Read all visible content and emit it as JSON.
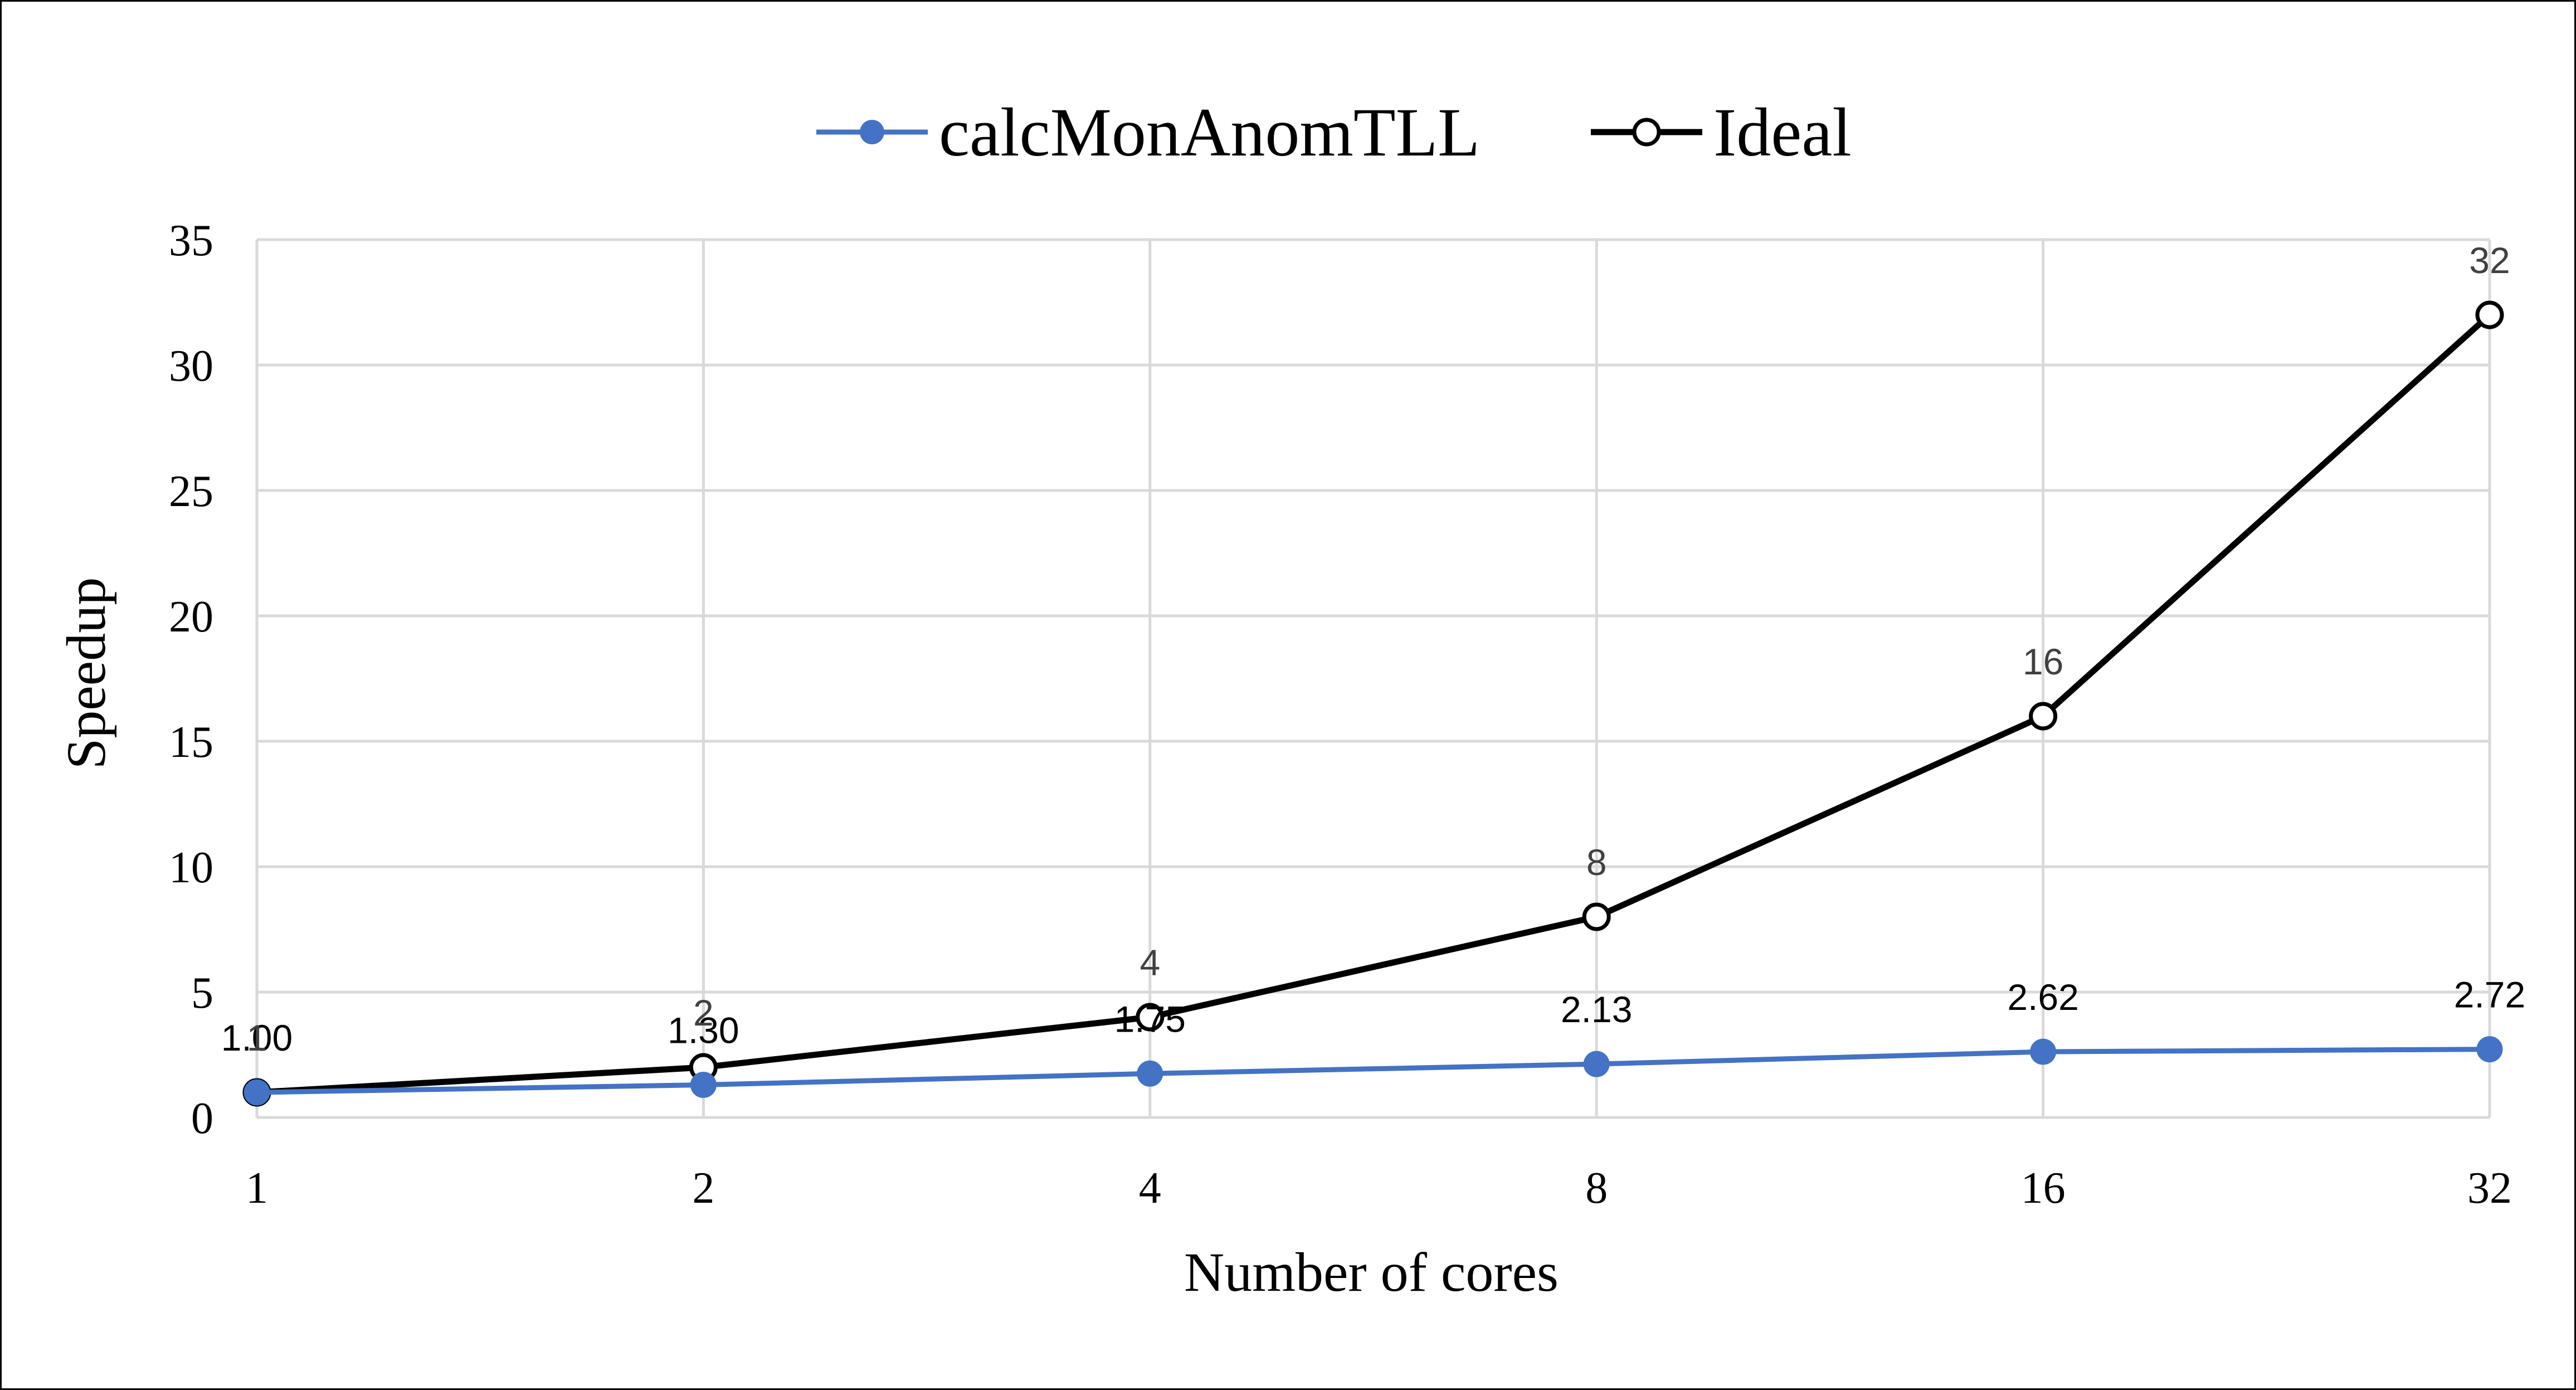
{
  "chart_data": {
    "type": "line",
    "title": "",
    "xlabel": "Number of cores",
    "ylabel": "Speedup",
    "categories": [
      "1",
      "2",
      "4",
      "8",
      "16",
      "32"
    ],
    "ylim": [
      0,
      35
    ],
    "yticks": [
      0,
      5,
      10,
      15,
      20,
      25,
      30,
      35
    ],
    "grid": true,
    "legend_position": "top-center",
    "series": [
      {
        "name": "calcMonAnomTLL",
        "values": [
          1.0,
          1.3,
          1.75,
          2.13,
          2.62,
          2.72
        ],
        "labels": [
          "1.00",
          "1.30",
          "1.75",
          "2.13",
          "2.62",
          "2.72"
        ],
        "color": "#4472c4",
        "marker": "filled-circle",
        "label_color": "#000000"
      },
      {
        "name": "Ideal",
        "values": [
          1,
          2,
          4,
          8,
          16,
          32
        ],
        "labels": [
          "1",
          "2",
          "4",
          "8",
          "16",
          "32"
        ],
        "color": "#000000",
        "marker": "open-circle",
        "label_color": "#404040"
      }
    ]
  }
}
